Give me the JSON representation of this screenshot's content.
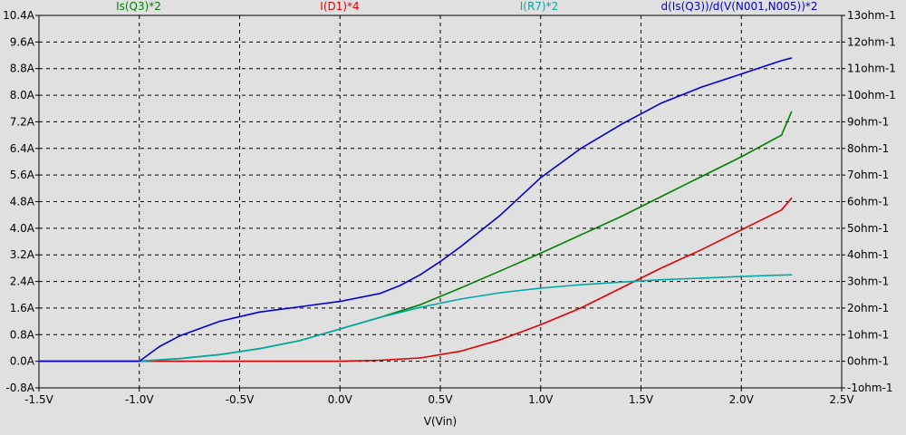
{
  "chart_data": {
    "type": "line",
    "xlabel": "V(Vin)",
    "x_ticks": [
      "-1.5V",
      "-1.0V",
      "-0.5V",
      "0.0V",
      "0.5V",
      "1.0V",
      "1.5V",
      "2.0V",
      "2.5V"
    ],
    "xlim": [
      -1.5,
      2.5
    ],
    "y_left_ticks": [
      "-0.8A",
      "0.0A",
      "0.8A",
      "1.6A",
      "2.4A",
      "3.2A",
      "4.0A",
      "4.8A",
      "5.6A",
      "6.4A",
      "7.2A",
      "8.0A",
      "8.8A",
      "9.6A",
      "10.4A"
    ],
    "ylim_left": [
      -0.8,
      10.4
    ],
    "y_right_ticks": [
      "-1ohm-1",
      "0ohm-1",
      "1ohm-1",
      "2ohm-1",
      "3ohm-1",
      "4ohm-1",
      "5ohm-1",
      "6ohm-1",
      "7ohm-1",
      "8ohm-1",
      "9ohm-1",
      "10ohm-1",
      "11ohm-1",
      "12ohm-1",
      "13ohm-1"
    ],
    "ylim_right": [
      -1,
      13
    ],
    "grid": true,
    "series": [
      {
        "name": "Is(Q3)*2",
        "color": "#008000",
        "axis": "left",
        "x": [
          -1.5,
          -1.0,
          -0.8,
          -0.6,
          -0.4,
          -0.2,
          0.0,
          0.2,
          0.4,
          0.6,
          0.8,
          1.0,
          1.2,
          1.4,
          1.6,
          1.8,
          2.0,
          2.2,
          2.25
        ],
        "y": [
          0.0,
          0.0,
          0.08,
          0.2,
          0.38,
          0.62,
          0.97,
          1.32,
          1.7,
          2.2,
          2.72,
          3.25,
          3.8,
          4.35,
          4.95,
          5.55,
          6.15,
          6.8,
          7.5
        ]
      },
      {
        "name": "I(D1)*4",
        "color": "#e00000",
        "axis": "left",
        "x": [
          -1.5,
          -0.5,
          0.0,
          0.2,
          0.4,
          0.6,
          0.8,
          1.0,
          1.2,
          1.4,
          1.6,
          1.8,
          2.0,
          2.2,
          2.25
        ],
        "y": [
          0.0,
          0.0,
          0.0,
          0.03,
          0.1,
          0.3,
          0.65,
          1.1,
          1.6,
          2.2,
          2.8,
          3.35,
          3.95,
          4.55,
          4.9
        ]
      },
      {
        "name": "I(R7)*2",
        "color": "#00a8a8",
        "axis": "left",
        "x": [
          -1.5,
          -1.0,
          -0.8,
          -0.6,
          -0.4,
          -0.2,
          0.0,
          0.2,
          0.4,
          0.6,
          0.8,
          1.0,
          1.2,
          1.4,
          1.6,
          1.8,
          2.0,
          2.25
        ],
        "y": [
          0.0,
          0.0,
          0.08,
          0.2,
          0.38,
          0.62,
          0.97,
          1.32,
          1.62,
          1.87,
          2.06,
          2.2,
          2.3,
          2.38,
          2.45,
          2.5,
          2.55,
          2.6
        ]
      },
      {
        "name": "d(Is(Q3))/d(V(N001,N005))*2",
        "color": "#0000d0",
        "axis": "right",
        "x": [
          -1.5,
          -1.0,
          -0.9,
          -0.8,
          -0.6,
          -0.4,
          -0.2,
          0.0,
          0.2,
          0.3,
          0.4,
          0.5,
          0.6,
          0.8,
          1.0,
          1.2,
          1.4,
          1.6,
          1.8,
          2.0,
          2.2,
          2.25
        ],
        "y": [
          0.0,
          0.0,
          0.55,
          0.95,
          1.5,
          1.85,
          2.05,
          2.25,
          2.55,
          2.85,
          3.25,
          3.75,
          4.3,
          5.5,
          6.9,
          8.0,
          8.9,
          9.7,
          10.3,
          10.8,
          11.3,
          11.4
        ]
      }
    ]
  }
}
